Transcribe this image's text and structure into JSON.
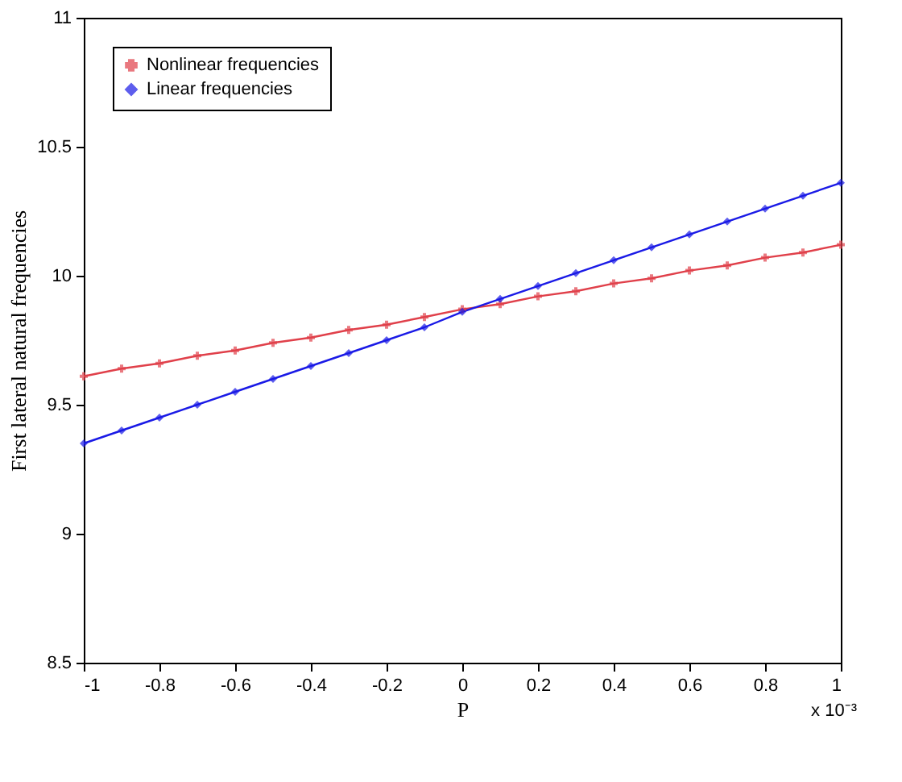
{
  "chart_data": {
    "type": "line",
    "xlabel": "P",
    "ylabel": "First lateral natural frequencies",
    "x": [
      -1,
      -0.9,
      -0.8,
      -0.7,
      -0.6,
      -0.5,
      -0.4,
      -0.3,
      -0.2,
      -0.1,
      0,
      0.1,
      0.2,
      0.3,
      0.4,
      0.5,
      0.6,
      0.7,
      0.8,
      0.9,
      1
    ],
    "series": [
      {
        "name": "Nonlinear frequencies",
        "color": "#e0404a",
        "marker": "cross",
        "values": [
          9.61,
          9.64,
          9.66,
          9.69,
          9.71,
          9.74,
          9.76,
          9.79,
          9.81,
          9.84,
          9.87,
          9.89,
          9.92,
          9.94,
          9.97,
          9.99,
          10.02,
          10.04,
          10.07,
          10.09,
          10.12
        ]
      },
      {
        "name": "Linear frequencies",
        "color": "#1a1ae6",
        "marker": "diamond",
        "values": [
          9.35,
          9.4,
          9.45,
          9.5,
          9.55,
          9.6,
          9.65,
          9.7,
          9.75,
          9.8,
          9.86,
          9.91,
          9.96,
          10.01,
          10.06,
          10.11,
          10.16,
          10.21,
          10.26,
          10.31,
          10.36
        ]
      }
    ],
    "xlim": [
      -1,
      1
    ],
    "xticks": [
      -1,
      -0.8,
      -0.6,
      -0.4,
      -0.2,
      0,
      0.2,
      0.4,
      0.6,
      0.8,
      1
    ],
    "ylim": [
      8.5,
      11
    ],
    "yticks": [
      8.5,
      9,
      9.5,
      10,
      10.5,
      11
    ],
    "annotations": [
      "x 10⁻³"
    ],
    "grid": false,
    "legend": "top left",
    "line_style": "solid"
  }
}
